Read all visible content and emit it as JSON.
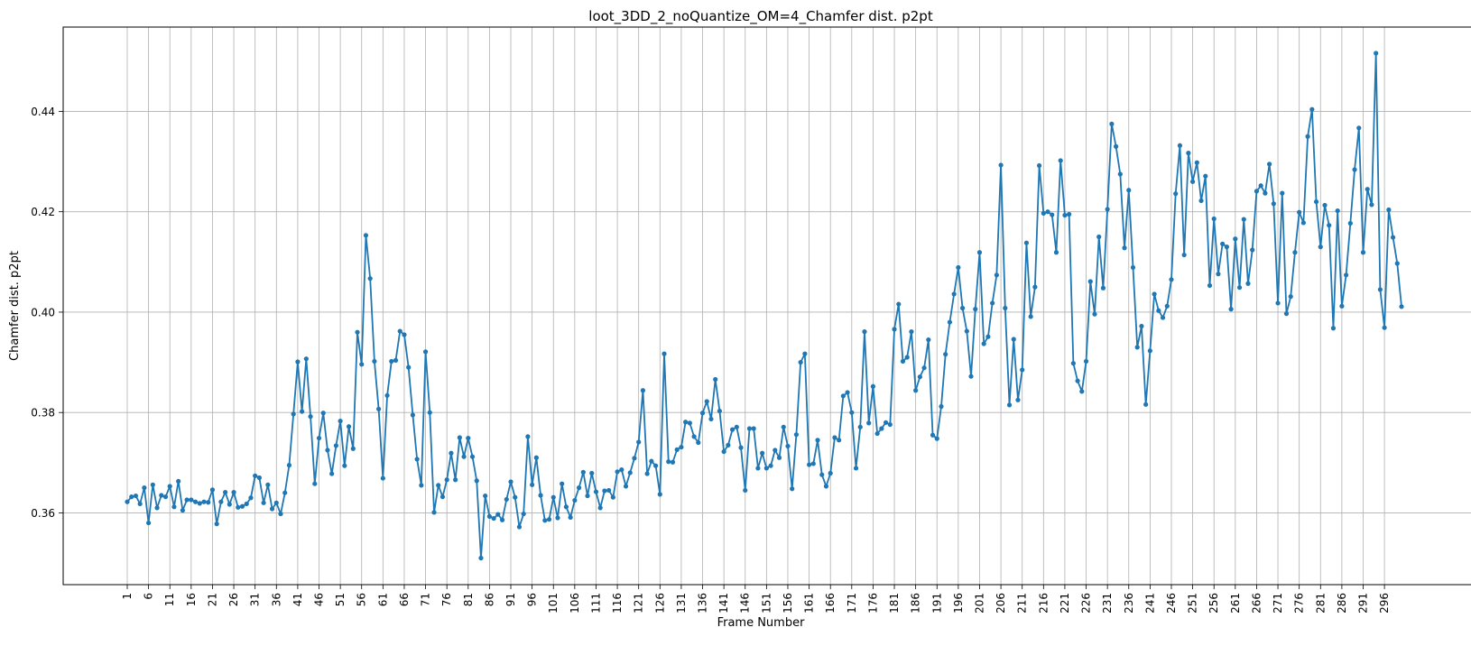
{
  "chart_data": {
    "type": "line",
    "title": "loot_3DD_2_noQuantize_OM=4_Chamfer dist. p2pt",
    "xlabel": "Frame Number",
    "ylabel": "Chamfer dist. p2pt",
    "ylim": [
      0.3457,
      0.4568
    ],
    "yticks": [
      0.36,
      0.38,
      0.4,
      0.42,
      0.44
    ],
    "ytick_labels": [
      "0.36",
      "0.38",
      "0.40",
      "0.42",
      "0.44"
    ],
    "xticks": [
      1,
      6,
      11,
      16,
      21,
      26,
      31,
      36,
      41,
      46,
      51,
      56,
      61,
      66,
      71,
      76,
      81,
      86,
      91,
      96,
      101,
      106,
      111,
      116,
      121,
      126,
      131,
      136,
      141,
      146,
      151,
      156,
      161,
      166,
      171,
      176,
      181,
      186,
      191,
      196,
      201,
      206,
      211,
      216,
      221,
      226,
      231,
      236,
      241,
      246,
      251,
      256,
      261,
      266,
      271,
      276,
      281,
      286,
      291,
      296
    ],
    "grid": true,
    "legend": "none",
    "series": [
      {
        "color": "#1f77b4",
        "x_start": 1,
        "values": [
          0.3622,
          0.3632,
          0.3634,
          0.3618,
          0.365,
          0.358,
          0.3656,
          0.361,
          0.3635,
          0.3632,
          0.3653,
          0.3612,
          0.3663,
          0.3605,
          0.3626,
          0.3626,
          0.3622,
          0.3619,
          0.3622,
          0.3621,
          0.3646,
          0.3578,
          0.3622,
          0.3641,
          0.3617,
          0.3641,
          0.3611,
          0.3613,
          0.3618,
          0.363,
          0.3674,
          0.367,
          0.362,
          0.3656,
          0.3608,
          0.362,
          0.3598,
          0.364,
          0.3695,
          0.3797,
          0.3901,
          0.3802,
          0.3907,
          0.3792,
          0.3658,
          0.3749,
          0.3799,
          0.3725,
          0.3678,
          0.3734,
          0.3783,
          0.3694,
          0.3772,
          0.3728,
          0.396,
          0.3896,
          0.4153,
          0.4067,
          0.3902,
          0.3807,
          0.3669,
          0.3834,
          0.3902,
          0.3904,
          0.3962,
          0.3955,
          0.389,
          0.3795,
          0.3707,
          0.3655,
          0.3921,
          0.38,
          0.3601,
          0.3655,
          0.3632,
          0.3666,
          0.3719,
          0.3666,
          0.375,
          0.3712,
          0.3749,
          0.3712,
          0.3664,
          0.351,
          0.3634,
          0.3593,
          0.3589,
          0.3597,
          0.3586,
          0.3627,
          0.3662,
          0.3631,
          0.3572,
          0.3598,
          0.3752,
          0.3656,
          0.371,
          0.3635,
          0.3585,
          0.3587,
          0.3631,
          0.359,
          0.3658,
          0.3612,
          0.3591,
          0.3625,
          0.365,
          0.3681,
          0.3634,
          0.3679,
          0.3642,
          0.361,
          0.3644,
          0.3645,
          0.3631,
          0.3682,
          0.3686,
          0.3653,
          0.368,
          0.3709,
          0.3741,
          0.3844,
          0.3678,
          0.3703,
          0.3694,
          0.3637,
          0.3917,
          0.3702,
          0.3701,
          0.3726,
          0.3731,
          0.3781,
          0.3779,
          0.3752,
          0.374,
          0.3799,
          0.3822,
          0.3787,
          0.3866,
          0.3803,
          0.3722,
          0.3735,
          0.3766,
          0.3771,
          0.373,
          0.3645,
          0.3768,
          0.3768,
          0.3689,
          0.3719,
          0.3689,
          0.3694,
          0.3725,
          0.371,
          0.3771,
          0.3733,
          0.3648,
          0.3756,
          0.39,
          0.3917,
          0.3696,
          0.3698,
          0.3745,
          0.3676,
          0.3653,
          0.3679,
          0.375,
          0.3745,
          0.3833,
          0.384,
          0.38,
          0.3689,
          0.3771,
          0.3961,
          0.3779,
          0.3852,
          0.3758,
          0.3768,
          0.378,
          0.3776,
          0.3966,
          0.4016,
          0.3902,
          0.391,
          0.3961,
          0.3844,
          0.3871,
          0.3889,
          0.3945,
          0.3755,
          0.3748,
          0.3812,
          0.3916,
          0.398,
          0.4036,
          0.4089,
          0.4008,
          0.3962,
          0.3872,
          0.4006,
          0.4119,
          0.3937,
          0.3951,
          0.4018,
          0.4074,
          0.4293,
          0.4008,
          0.3815,
          0.3946,
          0.3825,
          0.3885,
          0.4138,
          0.3991,
          0.405,
          0.4292,
          0.4197,
          0.42,
          0.4194,
          0.4119,
          0.4302,
          0.4193,
          0.4195,
          0.3898,
          0.3863,
          0.3842,
          0.3902,
          0.4061,
          0.3996,
          0.415,
          0.4048,
          0.4205,
          0.4375,
          0.433,
          0.4275,
          0.4128,
          0.4243,
          0.4089,
          0.393,
          0.3972,
          0.3816,
          0.3923,
          0.4036,
          0.4003,
          0.3989,
          0.4012,
          0.4065,
          0.4236,
          0.4332,
          0.4114,
          0.4317,
          0.426,
          0.4298,
          0.4222,
          0.4271,
          0.4053,
          0.4186,
          0.4076,
          0.4136,
          0.413,
          0.4006,
          0.4146,
          0.4049,
          0.4185,
          0.4057,
          0.4124,
          0.4241,
          0.4252,
          0.4237,
          0.4295,
          0.4216,
          0.4018,
          0.4237,
          0.3997,
          0.4031,
          0.4119,
          0.4199,
          0.4178,
          0.435,
          0.4404,
          0.422,
          0.413,
          0.4213,
          0.4173,
          0.3968,
          0.4202,
          0.4012,
          0.4074,
          0.4177,
          0.4284,
          0.4367,
          0.4119,
          0.4245,
          0.4214,
          0.4516,
          0.4045,
          0.3969,
          0.4204,
          0.4149,
          0.4097,
          0.4011
        ]
      }
    ]
  }
}
